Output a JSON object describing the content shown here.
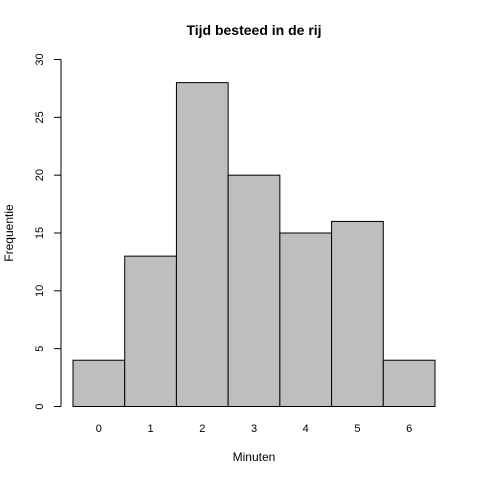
{
  "chart_data": {
    "type": "bar",
    "title": "Tijd besteed in de rij",
    "xlabel": "Minuten",
    "ylabel": "Frequentie",
    "categories": [
      "0",
      "1",
      "2",
      "3",
      "4",
      "5",
      "6"
    ],
    "values": [
      4,
      13,
      28,
      20,
      15,
      16,
      4
    ],
    "ylim": [
      0,
      30
    ],
    "yticks": [
      0,
      5,
      10,
      15,
      20,
      25,
      30
    ],
    "bar_color": "#bebebe",
    "grid": false,
    "legend": "none"
  }
}
